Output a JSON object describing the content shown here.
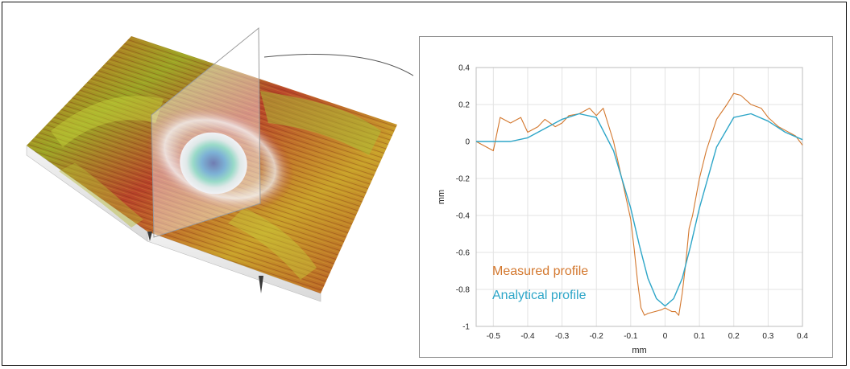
{
  "figure": {
    "surface_icon": "3d-surface-scan-with-section-plane"
  },
  "chart_data": {
    "type": "line",
    "xlabel": "mm",
    "ylabel": "mm",
    "xlim": [
      -0.55,
      0.4
    ],
    "ylim": [
      -1.0,
      0.4
    ],
    "xticks": [
      "-0.5",
      "-0.4",
      "-0.3",
      "-0.2",
      "-0.1",
      "0",
      "0.1",
      "0.2",
      "0.3",
      "0.4"
    ],
    "yticks": [
      "0.4",
      "0.2",
      "0",
      "-0.2",
      "-0.4",
      "-0.6",
      "-0.8",
      "-1"
    ],
    "grid": true,
    "legend_placement": "bottom-left",
    "series": [
      {
        "name": "Measured profile",
        "color": "#d3772d",
        "x": [
          -0.55,
          -0.5,
          -0.48,
          -0.45,
          -0.42,
          -0.4,
          -0.37,
          -0.35,
          -0.32,
          -0.3,
          -0.28,
          -0.25,
          -0.22,
          -0.2,
          -0.18,
          -0.15,
          -0.12,
          -0.1,
          -0.09,
          -0.08,
          -0.07,
          -0.06,
          -0.05,
          -0.03,
          -0.01,
          0.0,
          0.01,
          0.02,
          0.03,
          0.04,
          0.05,
          0.06,
          0.07,
          0.08,
          0.1,
          0.12,
          0.15,
          0.18,
          0.2,
          0.22,
          0.25,
          0.28,
          0.3,
          0.33,
          0.35,
          0.38,
          0.4
        ],
        "y": [
          0.0,
          -0.05,
          0.13,
          0.1,
          0.13,
          0.05,
          0.08,
          0.12,
          0.08,
          0.1,
          0.14,
          0.15,
          0.18,
          0.14,
          0.18,
          0.0,
          -0.25,
          -0.42,
          -0.58,
          -0.76,
          -0.9,
          -0.94,
          -0.93,
          -0.92,
          -0.91,
          -0.9,
          -0.91,
          -0.92,
          -0.92,
          -0.94,
          -0.82,
          -0.66,
          -0.47,
          -0.4,
          -0.2,
          -0.05,
          0.12,
          0.2,
          0.26,
          0.25,
          0.2,
          0.18,
          0.13,
          0.08,
          0.06,
          0.03,
          -0.02
        ]
      },
      {
        "name": "Analytical profile",
        "color": "#2ea6c8",
        "x": [
          -0.55,
          -0.5,
          -0.45,
          -0.4,
          -0.35,
          -0.3,
          -0.25,
          -0.2,
          -0.15,
          -0.1,
          -0.075,
          -0.05,
          -0.025,
          0.0,
          0.025,
          0.05,
          0.075,
          0.1,
          0.15,
          0.2,
          0.25,
          0.3,
          0.35,
          0.4
        ],
        "y": [
          0.0,
          0.0,
          0.0,
          0.02,
          0.07,
          0.12,
          0.15,
          0.13,
          -0.05,
          -0.36,
          -0.56,
          -0.74,
          -0.85,
          -0.89,
          -0.85,
          -0.74,
          -0.56,
          -0.36,
          -0.03,
          0.13,
          0.15,
          0.11,
          0.05,
          0.01
        ]
      }
    ]
  }
}
